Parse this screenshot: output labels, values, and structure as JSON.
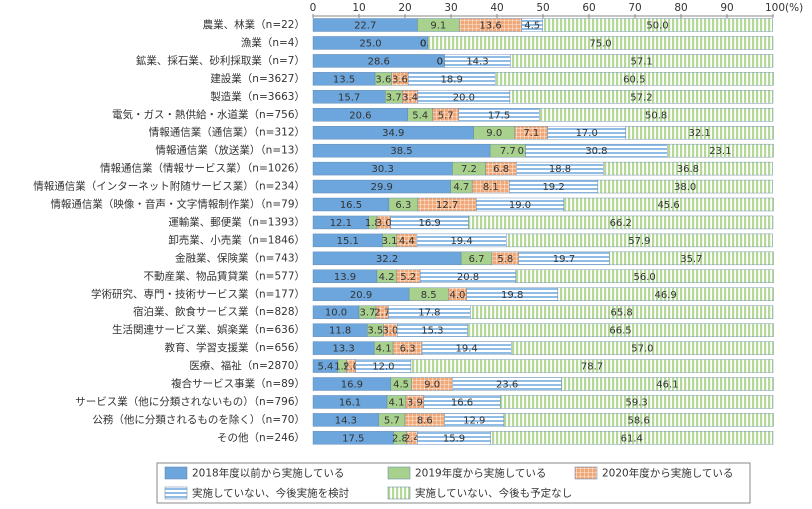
{
  "chart_data": {
    "type": "stacked_bar_horizontal",
    "categories": [
      "農業、林業（n=22）",
      "漁業（n=4）",
      "鉱業、採石業、砂利採取業（n=7）",
      "建設業（n=3627）",
      "製造業（n=3663）",
      "電気・ガス・熱供給・水道業（n=756）",
      "情報通信業（通信業）（n=312）",
      "情報通信業（放送業）（n=13）",
      "情報通信業（情報サービス業）（n=1026）",
      "情報通信業（インターネット附随サービス業）（n=234）",
      "情報通信業（映像・音声・文字情報制作業）（n=79）",
      "運輸業、郵便業（n=1393）",
      "卸売業、小売業（n=1846）",
      "金融業、保険業（n=743）",
      "不動産業、物品賃貸業（n=577）",
      "学術研究、専門・技術サービス業（n=177）",
      "宿泊業、飲食サービス業（n=828）",
      "生活関連サービス業、娯楽業（n=636）",
      "教育、学習支援業（n=656）",
      "医療、福祉（n=2870）",
      "複合サービス事業（n=89）",
      "サービス業（他に分類されないもの）（n=796）",
      "公務（他に分類されるものを除く）（n=70）",
      "その他（n=246）"
    ],
    "series": [
      {
        "name": "2018年度以前から実施している",
        "color": "#6ca6dc",
        "hatch": "solid",
        "values": [
          22.7,
          25.0,
          28.6,
          13.5,
          15.7,
          20.6,
          34.9,
          38.5,
          30.3,
          29.9,
          16.5,
          12.1,
          15.1,
          32.2,
          13.9,
          20.9,
          10.0,
          11.8,
          13.3,
          5.4,
          16.9,
          16.1,
          14.3,
          17.5
        ],
        "value_labels": [
          "22.7",
          "25.0",
          "28.6",
          "13.5",
          "15.7",
          "20.6",
          "34.9",
          "38.5",
          "30.3",
          "29.9",
          "16.5",
          "12.1",
          "15.1",
          "32.2",
          "13.9",
          "20.9",
          "10.0",
          "11.8",
          "13.3",
          "5.4",
          "16.9",
          "16.1",
          "14.3",
          "17.5"
        ]
      },
      {
        "name": "2019年度から実施している",
        "color": "#a9d18e",
        "hatch": "solid",
        "values": [
          9.1,
          0.0,
          0.0,
          3.6,
          3.7,
          5.4,
          9.0,
          7.7,
          7.2,
          4.7,
          6.3,
          1.8,
          3.1,
          6.7,
          4.2,
          8.5,
          3.7,
          3.5,
          4.1,
          1.9,
          4.5,
          4.1,
          5.7,
          2.8
        ],
        "value_labels": [
          "9.1",
          "0.0",
          "0.0",
          "3.6",
          "3.7",
          "5.4",
          "9.0",
          "7.7",
          "7.2",
          "4.7",
          "6.3",
          "1.8",
          "3.1",
          "6.7",
          "4.2",
          "8.5",
          "3.7",
          "3.5",
          "4.1",
          "1.9",
          "4.5",
          "4.1",
          "5.7",
          "2.8"
        ]
      },
      {
        "name": "2020年度から実施している",
        "color": "#f0a878",
        "hatch": "grid",
        "values": [
          13.6,
          0.0,
          0.0,
          3.6,
          3.4,
          5.7,
          7.1,
          0.0,
          6.8,
          8.1,
          12.7,
          3.0,
          4.4,
          5.8,
          5.2,
          4.0,
          2.7,
          3.0,
          6.3,
          2.0,
          9.0,
          3.9,
          8.6,
          2.4
        ],
        "value_labels": [
          "13.6",
          "0.0",
          "0.0",
          "3.6",
          "3.4",
          "5.7",
          "7.1",
          "0.0",
          "6.8",
          "8.1",
          "12.7",
          "3.0",
          "4.4",
          "5.8",
          "5.2",
          "4.0",
          "2.7",
          "3.0",
          "6.3",
          "2.0",
          "9.0",
          "3.9",
          "8.6",
          "2.4"
        ]
      },
      {
        "name": "実施していない、今後実施を検討",
        "color": "#8fbde6",
        "hatch": "horizontal",
        "values": [
          4.5,
          0.0,
          14.3,
          18.9,
          20.0,
          17.5,
          17.0,
          30.8,
          18.8,
          19.2,
          19.0,
          16.9,
          19.4,
          19.7,
          20.8,
          19.8,
          17.8,
          15.3,
          19.4,
          12.0,
          23.6,
          16.6,
          12.9,
          15.9
        ],
        "value_labels": [
          "4.5",
          "0.0",
          "14.3",
          "18.9",
          "20.0",
          "17.5",
          "17.0",
          "30.8",
          "18.8",
          "19.2",
          "19.0",
          "16.9",
          "19.4",
          "19.7",
          "20.8",
          "19.8",
          "17.8",
          "15.3",
          "19.4",
          "12.0",
          "23.6",
          "16.6",
          "12.9",
          "15.9"
        ]
      },
      {
        "name": "実施していない、今後も予定なし",
        "color": "#b4d896",
        "hatch": "vertical",
        "values": [
          50.0,
          75.0,
          57.1,
          60.5,
          57.2,
          50.8,
          32.1,
          23.1,
          36.8,
          38.0,
          45.6,
          66.2,
          57.9,
          35.7,
          56.0,
          46.9,
          65.8,
          66.5,
          57.0,
          78.7,
          46.1,
          59.3,
          58.6,
          61.4
        ],
        "value_labels": [
          "50.0",
          "75.0",
          "57.1",
          "60.5",
          "57.2",
          "50.8",
          "32.1",
          "23.1",
          "36.8",
          "38.0",
          "45.6",
          "66.2",
          "57.9",
          "35.7",
          "56.0",
          "46.9",
          "65.8",
          "66.5",
          "57.0",
          "78.7",
          "46.1",
          "59.3",
          "58.6",
          "61.4"
        ]
      }
    ],
    "xlim": [
      0,
      100
    ],
    "xticks": [
      0,
      10,
      20,
      30,
      40,
      50,
      60,
      70,
      80,
      90,
      {
        "value": 100,
        "label": "100(%)"
      }
    ]
  }
}
